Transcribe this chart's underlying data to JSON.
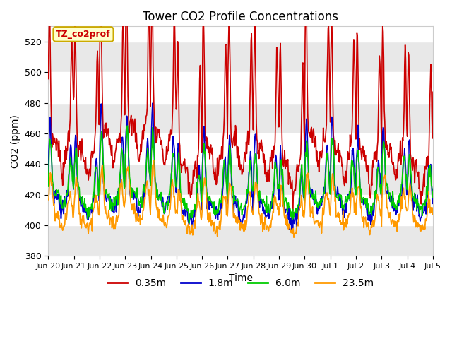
{
  "title": "Tower CO2 Profile Concentrations",
  "xlabel": "Time",
  "ylabel": "CO2 (ppm)",
  "ylim": [
    380,
    530
  ],
  "yticks": [
    380,
    400,
    420,
    440,
    460,
    480,
    500,
    520
  ],
  "colors": [
    "#cc0000",
    "#0000cc",
    "#00cc00",
    "#ff9900"
  ],
  "annotation_text": "TZ_co2prof",
  "annotation_color": "#cc0000",
  "annotation_bg": "#ffffcc",
  "annotation_border": "#ccaa00",
  "bg_color": "#ffffff",
  "plot_bg_color": "#ffffff",
  "grid_band_color": "#e8e8e8",
  "xtick_labels": [
    "Jun 20",
    "Jun 21",
    "Jun 22",
    "Jun 23",
    "Jun 24",
    "Jun 25",
    "Jun 26",
    "Jun 27",
    "Jun 28",
    "Jun 29",
    "Jun 30",
    "Jul 1",
    "Jul 2",
    "Jul 3",
    "Jul 4",
    "Jul 5"
  ],
  "legend_items": [
    "0.35m",
    "1.8m",
    "6.0m",
    "23.5m"
  ],
  "legend_colors": [
    "#cc0000",
    "#0000cc",
    "#00cc00",
    "#ff9900"
  ]
}
